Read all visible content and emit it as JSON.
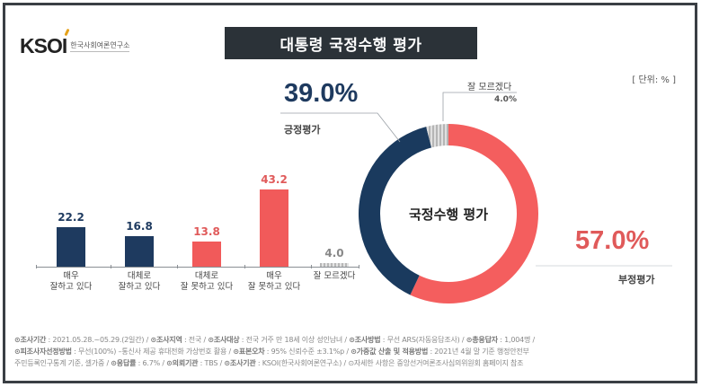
{
  "header": {
    "logo_text": "KSOI",
    "logo_sub": "한국사회여론연구소",
    "title": "대통령 국정수행 평가",
    "unit": "[ 단위: % ]"
  },
  "colors": {
    "positive": "#1e3a5f",
    "negative": "#f15a5a",
    "dont_know": "#c8c8c8",
    "title_bg": "#2b3238"
  },
  "chart_data": [
    {
      "type": "bar",
      "title": "대통령 국정수행 평가 (세부)",
      "categories": [
        "매우 잘하고 있다",
        "대체로 잘하고 있다",
        "대체로 잘 못하고 있다",
        "매우 잘 못하고 있다",
        "잘 모르겠다"
      ],
      "values": [
        22.2,
        16.8,
        13.8,
        43.2,
        4.0
      ],
      "colors": [
        "#1e3a5f",
        "#1e3a5f",
        "#f15a5a",
        "#f15a5a",
        "#c8c8c8"
      ],
      "xlabel": "",
      "ylabel": "%",
      "grid": false
    },
    {
      "type": "pie",
      "title": "국정수행 평가",
      "categories": [
        "긍정평가",
        "부정평가",
        "잘 모르겠다"
      ],
      "values": [
        39.0,
        57.0,
        4.0
      ],
      "colors": [
        "#1e3a5f",
        "#f15a5a",
        "#c8c8c8"
      ],
      "donut": true
    }
  ],
  "bars": [
    {
      "value": "22.2",
      "label1": "매우",
      "label2": "잘하고 있다"
    },
    {
      "value": "16.8",
      "label1": "대체로",
      "label2": "잘하고 있다"
    },
    {
      "value": "13.8",
      "label1": "대체로",
      "label2": "잘 못하고 있다"
    },
    {
      "value": "43.2",
      "label1": "매우",
      "label2": "잘 못하고 있다"
    },
    {
      "value": "4.0",
      "label1": "잘 모르겠다",
      "label2": ""
    }
  ],
  "donut": {
    "center_label": "국정수행 평가",
    "positive_pct": "39.0%",
    "positive_label": "긍정평가",
    "negative_pct": "57.0%",
    "negative_label": "부정평가",
    "dont_know_label": "잘 모르겠다",
    "dont_know_pct": "4.0%"
  },
  "footer": {
    "line1": [
      {
        "k": "⊙조사기간",
        "v": " : 2021.05.28.~05.29.(2일간)  /  "
      },
      {
        "k": "⊙조사지역",
        "v": " : 전국  /  "
      },
      {
        "k": "⊙조사대상",
        "v": " : 전국 거주 만 18세 이상 성인남녀  /  "
      },
      {
        "k": "⊙조사방법",
        "v": " : 무선 ARS(자동응답조사)  /  "
      },
      {
        "k": "⊙총응답자",
        "v": " : 1,004명  /"
      }
    ],
    "line2": [
      {
        "k": "⊙피조사자선정방법",
        "v": " : 무선(100%) –통신사 제공 휴대전화 가상번호 활용  /  "
      },
      {
        "k": "⊙표본오차",
        "v": " : 95% 신뢰수준 ±3.1%p  /  "
      },
      {
        "k": "⊙가중값 산출 및 적용방법",
        "v": " : 2021년 4월 말 기준 행정안전부"
      }
    ],
    "line3": [
      {
        "k": "",
        "v": "주민등록인구통계 기준, 셀가중  /  "
      },
      {
        "k": "⊙응답률",
        "v": " : 6.7%  /  "
      },
      {
        "k": "⊙의뢰기관",
        "v": " : TBS  /  "
      },
      {
        "k": "⊙조사기관",
        "v": " : KSOI(한국사회여론연구소)  /  "
      },
      {
        "k": "",
        "v": "⊙자세한 사항은 중앙선거여론조사심의위원회 홈페이지 참조"
      }
    ]
  }
}
